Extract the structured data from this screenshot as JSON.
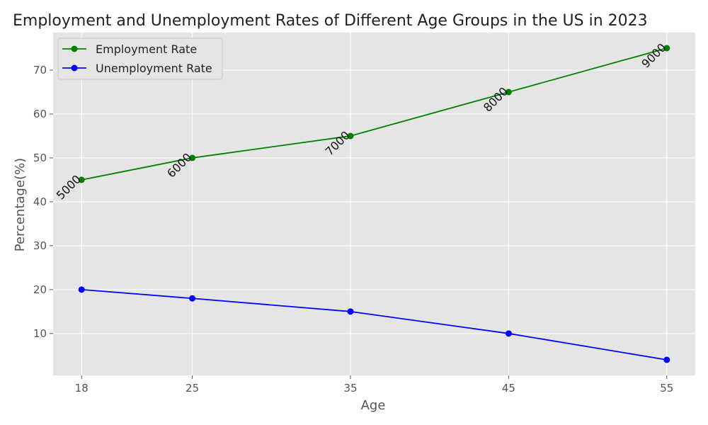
{
  "chart_data": {
    "type": "line",
    "title": "Employment and Unemployment Rates of Different Age Groups in the US in 2023",
    "xlabel": "Age",
    "ylabel": "Percentage(%)",
    "x": [
      18,
      25,
      35,
      45,
      55
    ],
    "x_ticks": [
      "18",
      "25",
      "35",
      "45",
      "55"
    ],
    "xlim": [
      16.2,
      56.8
    ],
    "ylim": [
      0.45,
      78.55
    ],
    "y_ticks": [
      "10",
      "20",
      "30",
      "40",
      "50",
      "60",
      "70"
    ],
    "series": [
      {
        "name": "Employment Rate",
        "values": [
          45,
          50,
          55,
          65,
          75
        ],
        "color": "#008000"
      },
      {
        "name": "Unemployment Rate",
        "values": [
          20,
          18,
          15,
          10,
          4
        ],
        "color": "#0000ff"
      }
    ],
    "annotations": {
      "series": "Employment Rate",
      "labels": [
        "5000",
        "6000",
        "7000",
        "8000",
        "9000"
      ]
    },
    "legend": "top-left",
    "grid": true,
    "background": "#e5e5e5"
  }
}
